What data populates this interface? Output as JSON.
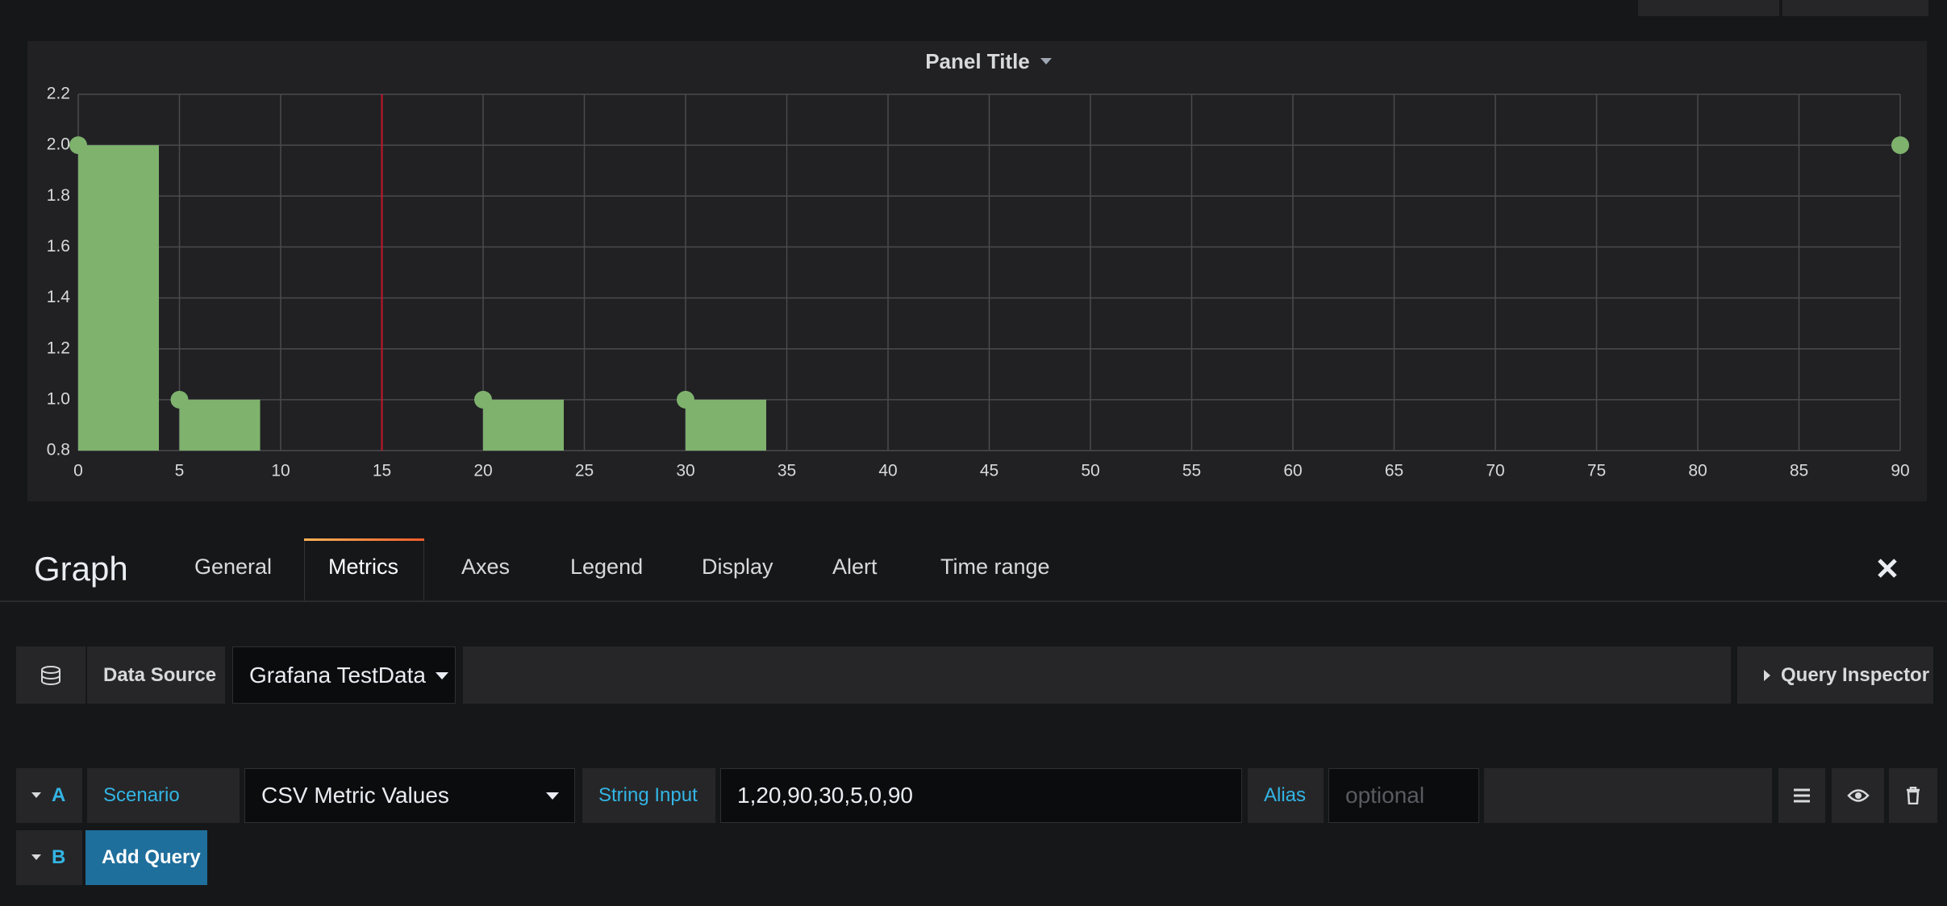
{
  "chart_data": {
    "type": "bar",
    "title": "Panel Title",
    "x": [
      0,
      5,
      20,
      30,
      90
    ],
    "values": [
      2,
      1,
      1,
      1,
      2
    ],
    "color": "#7eb26d",
    "points": true,
    "xlim": [
      0,
      90
    ],
    "xticks": [
      0,
      5,
      10,
      15,
      20,
      25,
      30,
      35,
      40,
      45,
      50,
      55,
      60,
      65,
      70,
      75,
      80,
      85,
      90
    ],
    "ylim": [
      0.8,
      2.2
    ],
    "yticks": [
      0.8,
      {
        "value": 1,
        "label": "1.0"
      },
      1.2,
      1.4,
      1.6,
      1.8,
      {
        "value": 2,
        "label": "2.0"
      },
      2.2
    ],
    "grid": true,
    "markers": [
      {
        "x": 15,
        "color": "#c4162a"
      }
    ]
  },
  "editor": {
    "title": "Graph",
    "tabs": [
      "General",
      "Metrics",
      "Axes",
      "Legend",
      "Display",
      "Alert",
      "Time range"
    ],
    "datasource": {
      "label": "Data Source",
      "value": "Grafana TestData",
      "inspector": "Query Inspector"
    },
    "queries": [
      {
        "ref": "A",
        "scenario_label": "Scenario",
        "scenario": "CSV Metric Values",
        "string_input_label": "String Input",
        "string_input": "1,20,90,30,5,0,90",
        "alias_label": "Alias",
        "alias_placeholder": "optional"
      },
      {
        "ref": "B",
        "action": "Add Query"
      }
    ]
  }
}
